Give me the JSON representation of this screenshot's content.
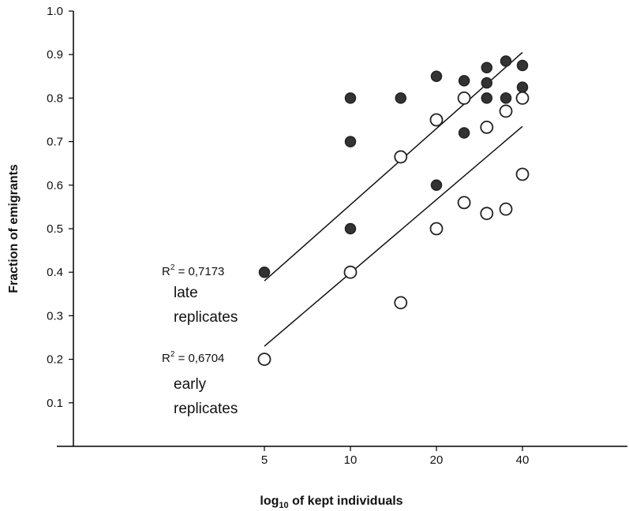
{
  "chart_data": {
    "type": "scatter",
    "title": "",
    "xlabel": "log",
    "xlabel_sub": "10",
    "xlabel_rest": " of kept individuals",
    "ylabel": "Fraction of emigrants",
    "x_scale": "log",
    "ylim": [
      0,
      1.0
    ],
    "xlim": [
      5,
      40
    ],
    "grid": false,
    "y_ticks": [
      "0.1",
      "0.2",
      "0.3",
      "0.4",
      "0.5",
      "0.6",
      "0.7",
      "0.8",
      "0.9",
      "1.0"
    ],
    "x_ticks": [
      5,
      10,
      20,
      40
    ],
    "x_tick_labels": [
      "5",
      "10",
      "20",
      "40"
    ],
    "series": [
      {
        "style": "filled",
        "points": [
          [
            5,
            0.4
          ],
          [
            10,
            0.5
          ],
          [
            10,
            0.7
          ],
          [
            10,
            0.8
          ],
          [
            15,
            0.8
          ],
          [
            20,
            0.6
          ],
          [
            20,
            0.85
          ],
          [
            25,
            0.72
          ],
          [
            25,
            0.84
          ],
          [
            30,
            0.8
          ],
          [
            30,
            0.835
          ],
          [
            30,
            0.87
          ],
          [
            35,
            0.8
          ],
          [
            35,
            0.885
          ],
          [
            40,
            0.825
          ],
          [
            40,
            0.875
          ]
        ],
        "trend": [
          [
            5,
            0.38
          ],
          [
            40,
            0.905
          ]
        ]
      },
      {
        "style": "open",
        "points": [
          [
            5,
            0.2
          ],
          [
            10,
            0.4
          ],
          [
            15,
            0.33
          ],
          [
            15,
            0.665
          ],
          [
            20,
            0.5
          ],
          [
            20,
            0.75
          ],
          [
            25,
            0.56
          ],
          [
            25,
            0.8
          ],
          [
            30,
            0.535
          ],
          [
            30,
            0.733
          ],
          [
            35,
            0.545
          ],
          [
            35,
            0.77
          ],
          [
            40,
            0.625
          ],
          [
            40,
            0.8
          ]
        ],
        "trend": [
          [
            5,
            0.23
          ],
          [
            40,
            0.735
          ]
        ]
      }
    ],
    "annotations": {
      "late": {
        "r2_prefix": "R",
        "r2_sup": "2",
        "r2_value": " = 0,7173",
        "line1": "late",
        "line2": "replicates"
      },
      "early": {
        "r2_prefix": "R",
        "r2_sup": "2",
        "r2_value": " = 0,6704",
        "line1": "early",
        "line2": "replicates"
      }
    }
  }
}
